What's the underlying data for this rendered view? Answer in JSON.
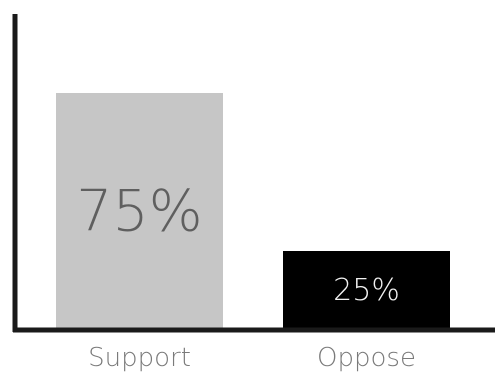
{
  "chart_data": {
    "type": "bar",
    "categories": [
      "Support",
      "Oppose"
    ],
    "values": [
      75,
      25
    ],
    "value_labels": [
      "75%",
      "25%"
    ],
    "colors": [
      "#c6c6c6",
      "#000000"
    ],
    "label_colors": [
      "#5f5f5f",
      "#f2f2f2"
    ],
    "ylim": [
      0,
      100
    ],
    "grid": false,
    "legend": "none",
    "title": "",
    "xlabel": "",
    "ylabel": ""
  }
}
